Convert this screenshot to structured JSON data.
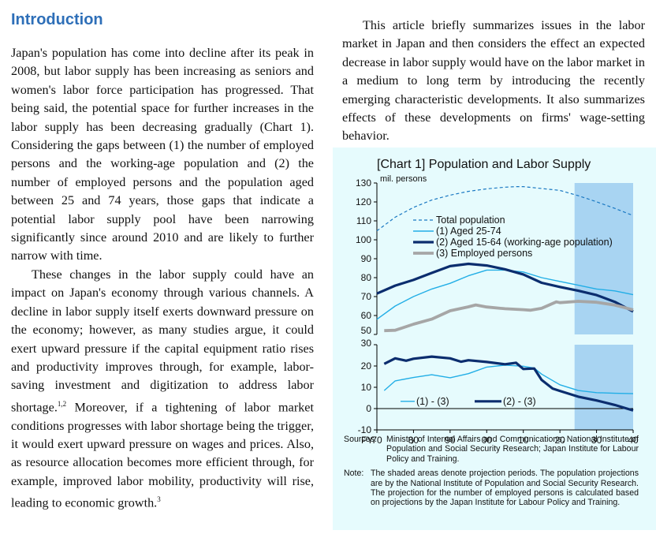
{
  "heading": "Introduction",
  "left_paragraphs": [
    "Japan's population has come into decline after its peak in 2008, but labor supply has been increasing as seniors and women's labor force participation has progressed. That being said, the potential space for further increases in the labor supply has been decreasing gradually (Chart 1). Considering the gaps between (1) the number of employed persons and the working-age population and (2) the number of employed persons and the population aged between 25 and 74 years, those gaps that indicate a potential labor supply pool have been narrowing significantly since around 2010 and are likely to further narrow with time.",
    "These changes in the labor supply could have an impact on Japan's economy through various channels. A decline in labor supply itself exerts downward pressure on the economy; however, as many studies argue, it could exert upward pressure if the capital equipment ratio rises and productivity improves through, for example, labor-saving investment and digitization to address labor shortage.",
    " Moreover, if a tightening of labor market conditions progresses with labor shortage being the trigger, it would exert upward pressure on wages and prices. Also, as resource allocation becomes more efficient through, for example, improved labor mobility, productivity will rise, leading to economic growth."
  ],
  "footnote_marks": {
    "first": "1,2",
    "second": "3"
  },
  "right_paragraph": "This article briefly summarizes issues in the labor market in Japan and then considers the effect an expected decrease in labor supply would have on the labor market in a medium to long term by introducing the recently emerging characteristic developments. It also summarizes effects of these developments on firms' wage-setting behavior.",
  "chart_data": {
    "type": "line",
    "title": "[Chart 1] Population and Labor Supply",
    "upper_unit": "mil. persons",
    "x_ticks": [
      "70",
      "80",
      "90",
      "00",
      "10",
      "20",
      "30",
      "40"
    ],
    "x_prefix": "FY",
    "x_range": [
      1970,
      2040
    ],
    "projection_start": 2024,
    "upper_panel": {
      "ylim": [
        50,
        130
      ],
      "y_ticks": [
        "130",
        "120",
        "110",
        "100",
        "90",
        "80",
        "70",
        "60",
        "50"
      ],
      "series": [
        {
          "name": "Total population",
          "style": "dashed",
          "color": "#1a78c2",
          "x": [
            1970,
            1975,
            1980,
            1985,
            1990,
            1995,
            2000,
            2005,
            2008,
            2010,
            2015,
            2020,
            2025,
            2030,
            2035,
            2040
          ],
          "y": [
            104.7,
            111.9,
            117.1,
            121.0,
            123.6,
            125.6,
            126.9,
            127.8,
            128.1,
            128.1,
            127.1,
            126.1,
            123.3,
            120.1,
            116.6,
            112.8
          ]
        },
        {
          "name": "(1) Aged 25-74",
          "style": "solid",
          "color": "#22aee6",
          "x": [
            1970,
            1975,
            1980,
            1985,
            1990,
            1995,
            2000,
            2005,
            2010,
            2015,
            2020,
            2025,
            2030,
            2035,
            2040
          ],
          "y": [
            58,
            65,
            70,
            74,
            77,
            81,
            84,
            84,
            83,
            80,
            78,
            76,
            74,
            73,
            71
          ]
        },
        {
          "name": "(2) Aged 15-64 (working-age population)",
          "style": "solid",
          "color": "#0b2d6e",
          "x": [
            1970,
            1975,
            1980,
            1985,
            1990,
            1995,
            2000,
            2005,
            2010,
            2015,
            2020,
            2025,
            2030,
            2035,
            2040
          ],
          "y": [
            71.6,
            75.8,
            78.8,
            82.5,
            86.1,
            87.3,
            86.4,
            84.4,
            81.7,
            77.3,
            75.1,
            73.1,
            70.8,
            67.2,
            62.1
          ]
        },
        {
          "name": "(3) Employed persons",
          "style": "solid",
          "color": "#a6a6a6",
          "x": [
            1972,
            1975,
            1980,
            1985,
            1990,
            1995,
            1997,
            2000,
            2005,
            2010,
            2012,
            2015,
            2019,
            2020,
            2025,
            2030,
            2035,
            2040
          ],
          "y": [
            52,
            52.2,
            55.4,
            58.1,
            62.5,
            64.6,
            65.6,
            64.5,
            63.6,
            63.1,
            62.8,
            63.8,
            67.2,
            66.8,
            67.5,
            67,
            65.5,
            63
          ]
        }
      ]
    },
    "lower_panel": {
      "ylim": [
        -10,
        30
      ],
      "y_ticks": [
        "30",
        "20",
        "10",
        "0",
        "-10"
      ],
      "series": [
        {
          "name": "(1) - (3)",
          "style": "solid",
          "color": "#22aee6",
          "x": [
            1972,
            1975,
            1980,
            1985,
            1990,
            1995,
            2000,
            2005,
            2010,
            2013,
            2015,
            2020,
            2025,
            2030,
            2035,
            2040
          ],
          "y": [
            8.5,
            13,
            14.6,
            15.9,
            14.5,
            16.4,
            19.5,
            20.4,
            19.9,
            19,
            16.2,
            11.2,
            8.5,
            7.5,
            7.2,
            7
          ]
        },
        {
          "name": "(2) - (3)",
          "style": "solid",
          "color": "#0b2d6e",
          "x": [
            1972,
            1975,
            1978,
            1980,
            1985,
            1990,
            1993,
            1995,
            2000,
            2005,
            2008,
            2010,
            2013,
            2015,
            2018,
            2020,
            2025,
            2030,
            2035,
            2040
          ],
          "y": [
            21,
            23.6,
            22.5,
            23.4,
            24.4,
            23.6,
            22,
            22.7,
            21.9,
            20.8,
            21.5,
            18.6,
            18.8,
            13.5,
            9.4,
            8.3,
            5.6,
            3.8,
            1.7,
            -0.9
          ]
        }
      ]
    }
  },
  "sources": {
    "label": "Sources:",
    "text": "Ministry of Internal Affairs and Communications; National Institute of Population and Social Security Research; Japan Institute for Labour Policy and Training."
  },
  "note": {
    "label": "Note:",
    "text": "The shaded areas denote projection periods. The population projections are by the National Institute of Population and Social Security Research. The projection for the number of employed persons is calculated based on projections by the Japan Institute for Labour Policy and Training."
  },
  "colors": {
    "heading": "#2e6fb8",
    "chart_background": "#e6fbfd",
    "projection_shade": "#a8d4f2"
  }
}
